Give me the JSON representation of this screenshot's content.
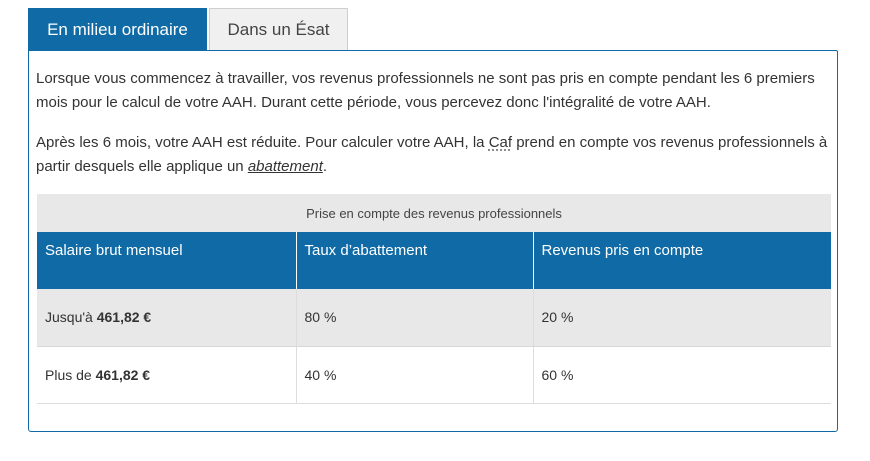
{
  "tabs": [
    {
      "label": "En milieu ordinaire",
      "active": true
    },
    {
      "label": "Dans un Ésat",
      "active": false
    }
  ],
  "content": {
    "paragraph1": "Lorsque vous commencez à travailler, vos revenus professionnels ne sont pas pris en compte pendant les 6 premiers mois pour le calcul de votre AAH. Durant cette période, vous percevez donc l'intégralité de votre AAH.",
    "paragraph2_before": "Après les 6 mois, votre AAH est réduite. Pour calculer votre AAH, la ",
    "paragraph2_caf": "Caf",
    "paragraph2_middle": " prend en compte vos revenus professionnels à partir desquels elle applique un ",
    "paragraph2_link": "abattement",
    "paragraph2_end": "."
  },
  "table": {
    "caption": "Prise en compte des revenus professionnels",
    "headers": [
      "Salaire brut mensuel",
      "Taux d’abattement",
      "Revenus pris en compte"
    ],
    "rows": [
      {
        "prefix": "Jusqu'à ",
        "amount": "461,82 €",
        "rate": "80 %",
        "taken": "20 %"
      },
      {
        "prefix": "Plus de ",
        "amount": "461,82 €",
        "rate": "40 %",
        "taken": "60 %"
      }
    ]
  },
  "colors": {
    "accent": "#0f6aa5",
    "caption_bg": "#e8e8e8",
    "inactive_tab_bg": "#f0f0f0"
  }
}
